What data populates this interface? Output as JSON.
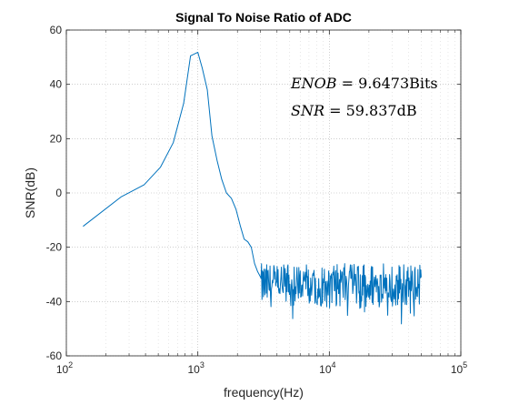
{
  "chart_data": {
    "type": "line",
    "title": "Signal To Noise Ratio of ADC",
    "xlabel": "frequency(Hz)",
    "ylabel": "SNR(dB)",
    "xscale": "log",
    "xlim": [
      100,
      100000
    ],
    "ylim": [
      -60,
      60
    ],
    "grid": "major and minor dotted",
    "xticks": [
      {
        "base": "10",
        "exp": "2"
      },
      {
        "base": "10",
        "exp": "3"
      },
      {
        "base": "10",
        "exp": "4"
      },
      {
        "base": "10",
        "exp": "5"
      }
    ],
    "yticks": [
      "-60",
      "-40",
      "-20",
      "0",
      "20",
      "40",
      "60"
    ],
    "annotations": [
      {
        "lhs": "ENOB",
        "rhs": "9.6473Bits"
      },
      {
        "lhs": "SNR",
        "rhs": "59.837dB"
      }
    ],
    "series": [
      {
        "color": "#0072BD",
        "x": [
          134,
          260,
          390,
          520,
          650,
          780,
          880,
          1000,
          1080,
          1180,
          1280,
          1400,
          1520,
          1650,
          1800,
          1950,
          2100,
          2250,
          2400,
          2550,
          2700,
          2850,
          3000
        ],
        "y": [
          -12.3,
          -1.5,
          3,
          9.5,
          18.5,
          33,
          50.5,
          51.8,
          46,
          38,
          21,
          12,
          5,
          0,
          -2,
          -6,
          -12,
          -17,
          -18,
          -20,
          -26,
          -29,
          -31
        ]
      }
    ],
    "noise_floor": {
      "x_start": 3000,
      "x_end": 50000,
      "center": -34,
      "spread": 8
    }
  }
}
